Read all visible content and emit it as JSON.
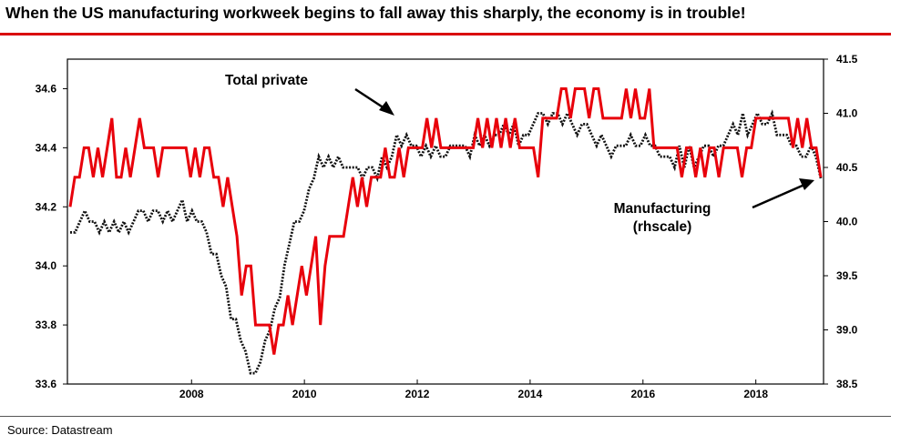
{
  "title": "When the US manufacturing workweek begins to fall away this sharply, the economy is in trouble!",
  "source": "Source: Datastream",
  "chart_data": {
    "type": "line",
    "x_start": 2006.3,
    "x_end": 2019.7,
    "x_ticks": [
      "2008",
      "2010",
      "2012",
      "2014",
      "2016",
      "2018"
    ],
    "left_axis": {
      "ylim": [
        33.6,
        34.7
      ],
      "ticks": [
        "33.6",
        "33.8",
        "34.0",
        "34.2",
        "34.4",
        "34.6"
      ]
    },
    "right_axis": {
      "ylim": [
        38.5,
        41.5
      ],
      "ticks": [
        "38.5",
        "39.0",
        "39.5",
        "40.0",
        "40.5",
        "41.0",
        "41.5"
      ]
    },
    "annotations": [
      {
        "text": "Total private"
      },
      {
        "text": "Manufacturing"
      },
      {
        "text": "(rhscale)"
      }
    ],
    "series": [
      {
        "axis": "left",
        "color": "#e8000b",
        "style": "solid",
        "values": [
          34.2,
          34.3,
          34.3,
          34.4,
          34.4,
          34.3,
          34.4,
          34.3,
          34.4,
          34.5,
          34.3,
          34.3,
          34.4,
          34.3,
          34.4,
          34.5,
          34.4,
          34.4,
          34.4,
          34.3,
          34.4,
          34.4,
          34.4,
          34.4,
          34.4,
          34.4,
          34.3,
          34.4,
          34.3,
          34.4,
          34.4,
          34.3,
          34.3,
          34.2,
          34.3,
          34.2,
          34.1,
          33.9,
          34.0,
          34.0,
          33.8,
          33.8,
          33.8,
          33.8,
          33.7,
          33.8,
          33.8,
          33.9,
          33.8,
          33.9,
          34.0,
          33.9,
          34.0,
          34.1,
          33.8,
          34.0,
          34.1,
          34.1,
          34.1,
          34.1,
          34.2,
          34.3,
          34.2,
          34.3,
          34.2,
          34.3,
          34.3,
          34.3,
          34.4,
          34.3,
          34.3,
          34.4,
          34.3,
          34.4,
          34.4,
          34.4,
          34.4,
          34.5,
          34.4,
          34.5,
          34.4,
          34.4,
          34.4,
          34.4,
          34.4,
          34.4,
          34.4,
          34.4,
          34.5,
          34.4,
          34.5,
          34.4,
          34.5,
          34.4,
          34.5,
          34.4,
          34.5,
          34.4,
          34.4,
          34.4,
          34.4,
          34.3,
          34.5,
          34.5,
          34.5,
          34.5,
          34.6,
          34.6,
          34.5,
          34.6,
          34.6,
          34.6,
          34.5,
          34.6,
          34.6,
          34.5,
          34.5,
          34.5,
          34.5,
          34.5,
          34.6,
          34.5,
          34.6,
          34.5,
          34.5,
          34.6,
          34.4,
          34.4,
          34.4,
          34.4,
          34.4,
          34.4,
          34.3,
          34.4,
          34.4,
          34.3,
          34.4,
          34.3,
          34.4,
          34.4,
          34.3,
          34.4,
          34.4,
          34.4,
          34.4,
          34.3,
          34.4,
          34.4,
          34.5,
          34.5,
          34.5,
          34.5,
          34.5,
          34.5,
          34.5,
          34.5,
          34.4,
          34.5,
          34.4,
          34.5,
          34.4,
          34.4,
          34.3
        ]
      },
      {
        "axis": "right",
        "color": "#111111",
        "style": "dotted",
        "values": [
          39.9,
          39.9,
          40.0,
          40.1,
          40.0,
          40.0,
          39.9,
          40.0,
          39.9,
          40.0,
          39.9,
          40.0,
          39.9,
          40.0,
          40.1,
          40.1,
          40.0,
          40.1,
          40.1,
          40.0,
          40.1,
          40.0,
          40.1,
          40.2,
          40.0,
          40.1,
          40.0,
          40.0,
          39.9,
          39.7,
          39.7,
          39.5,
          39.4,
          39.1,
          39.1,
          38.9,
          38.8,
          38.6,
          38.6,
          38.7,
          38.9,
          39.0,
          39.2,
          39.3,
          39.6,
          39.8,
          40.0,
          40.0,
          40.1,
          40.3,
          40.4,
          40.6,
          40.5,
          40.6,
          40.5,
          40.6,
          40.5,
          40.5,
          40.5,
          40.5,
          40.4,
          40.5,
          40.5,
          40.4,
          40.6,
          40.5,
          40.6,
          40.8,
          40.7,
          40.8,
          40.7,
          40.7,
          40.6,
          40.7,
          40.6,
          40.7,
          40.6,
          40.6,
          40.7,
          40.7,
          40.7,
          40.7,
          40.6,
          40.8,
          40.7,
          40.8,
          40.7,
          40.8,
          40.8,
          40.9,
          40.8,
          40.9,
          40.7,
          40.8,
          40.8,
          40.9,
          41.0,
          41.0,
          40.9,
          41.0,
          41.0,
          40.9,
          41.0,
          40.9,
          40.8,
          40.9,
          40.9,
          40.8,
          40.7,
          40.8,
          40.7,
          40.6,
          40.7,
          40.7,
          40.7,
          40.8,
          40.7,
          40.7,
          40.8,
          40.7,
          40.7,
          40.6,
          40.6,
          40.6,
          40.5,
          40.7,
          40.5,
          40.7,
          40.5,
          40.6,
          40.7,
          40.7,
          40.6,
          40.7,
          40.7,
          40.8,
          40.9,
          40.8,
          41.0,
          40.8,
          40.9,
          41.0,
          40.9,
          40.9,
          41.0,
          40.8,
          40.8,
          40.8,
          40.7,
          40.7,
          40.6,
          40.6,
          40.7,
          40.6,
          40.4
        ]
      }
    ]
  }
}
